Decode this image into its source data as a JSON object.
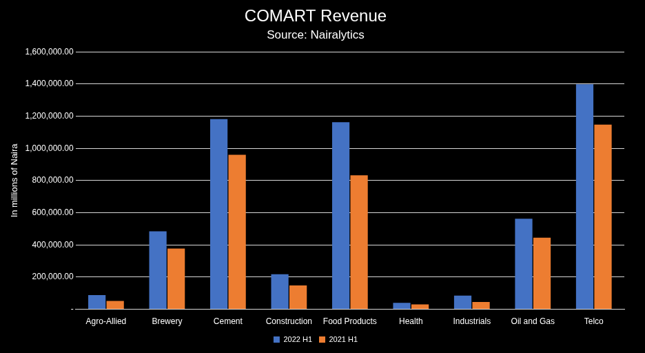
{
  "chart_data": {
    "type": "bar",
    "title": "COMART Revenue",
    "subtitle": "Source: Nairalytics",
    "y_label": "In millions of Naira",
    "categories": [
      "Agro-Allied",
      "Brewery",
      "Cement",
      "Construction",
      "Food Products",
      "Health",
      "Industrials",
      "Oil and Gas",
      "Telco"
    ],
    "series": [
      {
        "name": "2022 H1",
        "color": "#4472c4",
        "values": [
          88000,
          485000,
          1182000,
          218000,
          1163000,
          40000,
          85000,
          563000,
          1398000
        ]
      },
      {
        "name": "2021 H1",
        "color": "#ed7d31",
        "values": [
          52000,
          378000,
          960000,
          148000,
          833000,
          30000,
          45000,
          445000,
          1148000
        ]
      }
    ],
    "ylim": [
      0,
      1600000
    ],
    "yticks": [
      {
        "value": 0,
        "label": "-"
      },
      {
        "value": 200000,
        "label": "200,000.00"
      },
      {
        "value": 400000,
        "label": "400,000.00"
      },
      {
        "value": 600000,
        "label": "600,000.00"
      },
      {
        "value": 800000,
        "label": "800,000.00"
      },
      {
        "value": 1000000,
        "label": "1,000,000.00"
      },
      {
        "value": 1200000,
        "label": "1,200,000.00"
      },
      {
        "value": 1400000,
        "label": "1,400,000.00"
      },
      {
        "value": 1600000,
        "label": "1,600,000.00"
      }
    ],
    "grid": true,
    "legend": "bottom"
  }
}
